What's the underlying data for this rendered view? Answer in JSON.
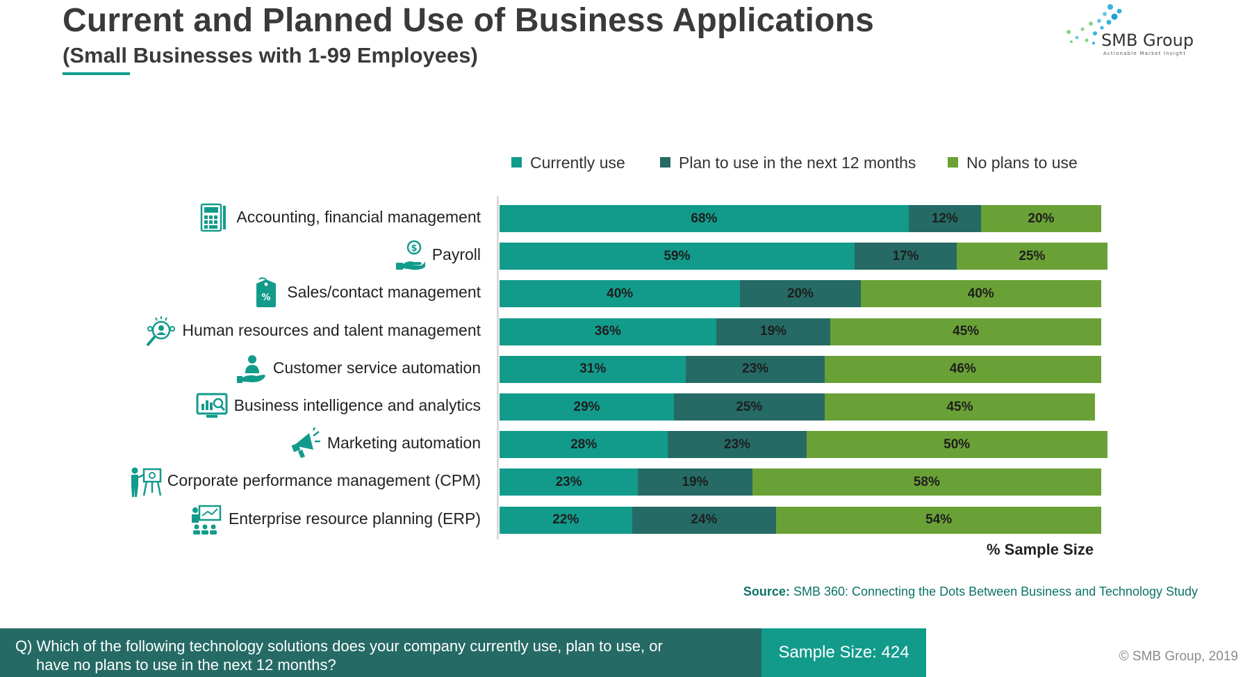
{
  "header": {
    "title": "Current and Planned Use of Business Applications",
    "subtitle": "(Small Businesses with 1-99 Employees)"
  },
  "logo": {
    "name": "SMB Group",
    "tagline": "Actionable Market Insight"
  },
  "colors": {
    "currently_use": "#129b8b",
    "plan_to_use": "#256a65",
    "no_plans": "#6aa136",
    "accent": "#129b8b"
  },
  "chart_data": {
    "type": "bar",
    "orientation": "horizontal",
    "stacked": true,
    "categories": [
      "Accounting, financial management",
      "Payroll",
      "Sales/contact management",
      "Human resources and talent management",
      "Customer service automation",
      "Business intelligence and analytics",
      "Marketing automation",
      "Corporate performance management (CPM)",
      "Enterprise resource planning (ERP)"
    ],
    "category_icons": [
      "calculator-icon",
      "payroll-hand-dollar-icon",
      "price-tag-icon",
      "talent-search-icon",
      "customer-service-hand-icon",
      "analytics-monitor-icon",
      "megaphone-icon",
      "presentation-icon",
      "planning-board-icon"
    ],
    "series": [
      {
        "name": "Currently use",
        "values": [
          68,
          59,
          40,
          36,
          31,
          29,
          28,
          23,
          22
        ]
      },
      {
        "name": "Plan to use in the next 12 months",
        "values": [
          12,
          17,
          20,
          19,
          23,
          25,
          23,
          19,
          24
        ]
      },
      {
        "name": "No plans to use",
        "values": [
          20,
          25,
          40,
          45,
          46,
          45,
          50,
          58,
          54
        ]
      }
    ],
    "value_suffix": "%",
    "xlabel": "% Sample Size",
    "xlim": [
      0,
      100
    ],
    "legend_position": "top",
    "grid": false
  },
  "footer": {
    "source_label": "Source:",
    "source_text": "SMB 360: Connecting the Dots Between Business and Technology Study",
    "question_line1": "Q) Which of the following technology solutions does your company currently use, plan to use, or",
    "question_line2": "have no plans to use in the next 12 months?",
    "sample_size": "Sample Size: 424",
    "copyright": "© SMB Group, 2019"
  }
}
